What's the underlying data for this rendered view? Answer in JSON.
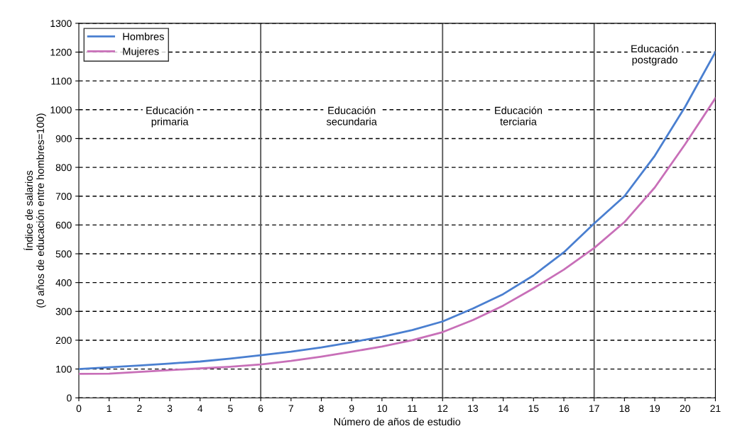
{
  "chart_data": {
    "type": "line",
    "xlabel": "Número de años de estudio",
    "ylabel": "Índice de salarios\n(0 años de educación entre hombres=100)",
    "x": [
      0,
      1,
      2,
      3,
      4,
      5,
      6,
      7,
      8,
      9,
      10,
      11,
      12,
      13,
      14,
      15,
      16,
      17,
      18,
      19,
      20,
      21
    ],
    "series": [
      {
        "name": "Hombres",
        "color": "#4a7fd0",
        "values": [
          100,
          106,
          112,
          119,
          126,
          136,
          148,
          160,
          175,
          193,
          212,
          235,
          265,
          310,
          360,
          425,
          505,
          605,
          700,
          840,
          1010,
          1200
        ]
      },
      {
        "name": "Mujeres",
        "color": "#c86fb8",
        "values": [
          83,
          84,
          90,
          96,
          102,
          108,
          116,
          128,
          143,
          160,
          178,
          200,
          228,
          270,
          320,
          380,
          445,
          520,
          610,
          730,
          880,
          1040
        ]
      }
    ],
    "xlim": [
      0,
      21
    ],
    "xticks": [
      0,
      1,
      2,
      3,
      4,
      5,
      6,
      7,
      8,
      9,
      10,
      11,
      12,
      13,
      14,
      15,
      16,
      17,
      18,
      19,
      20,
      21
    ],
    "ylim": [
      0,
      1300
    ],
    "yticks": [
      0,
      100,
      200,
      300,
      400,
      500,
      600,
      700,
      800,
      900,
      1000,
      1100,
      1200,
      1300
    ],
    "grid": "y",
    "legend": "top left",
    "marker": "none",
    "line_style": "solid",
    "ref_lines": [
      {
        "axis": "x",
        "value": 6,
        "color": "#555555"
      },
      {
        "axis": "x",
        "value": 12,
        "color": "#555555"
      },
      {
        "axis": "x",
        "value": 17,
        "color": "#555555"
      }
    ],
    "annotations": [
      "Educación\nprimaria",
      "Educación\nsecundaria",
      "Educación\nterciaria",
      "Educación\npostgrado"
    ]
  }
}
